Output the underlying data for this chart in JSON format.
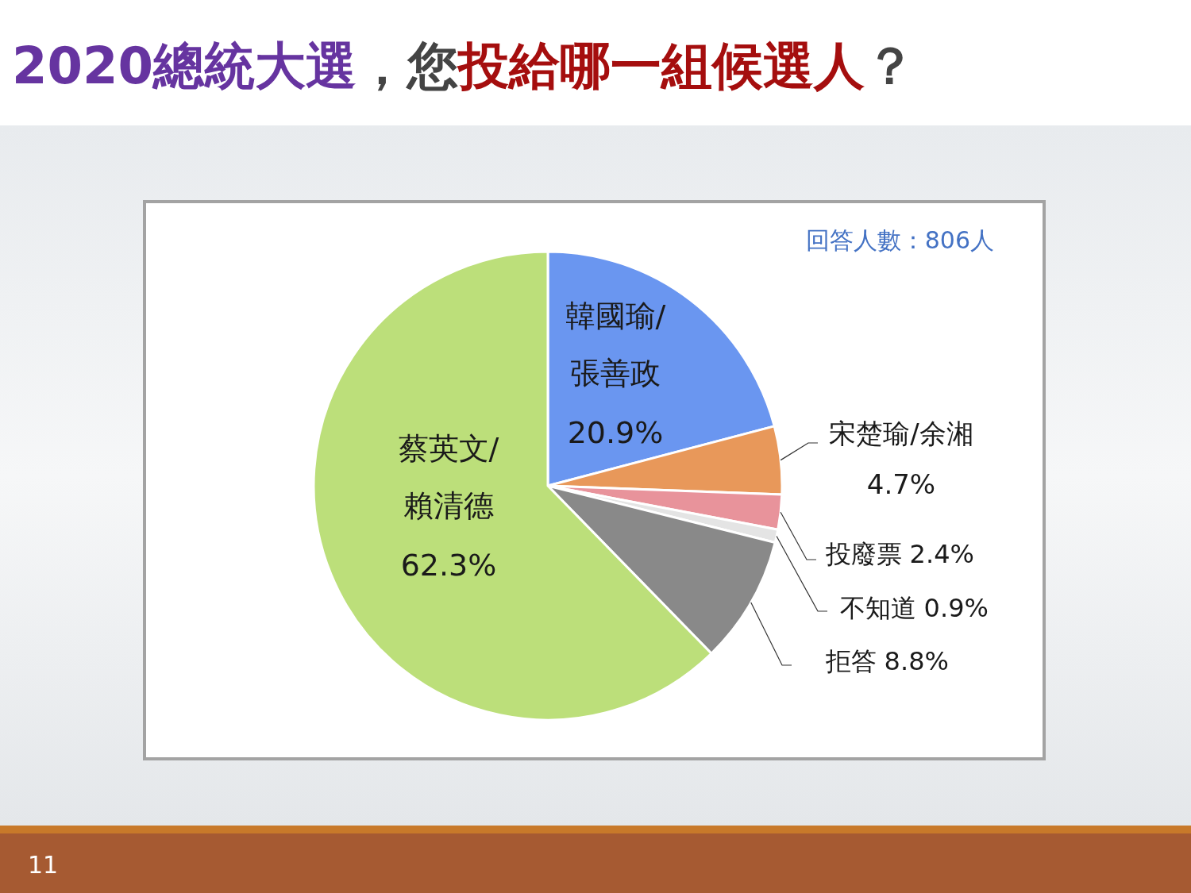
{
  "chart_data": {
    "type": "pie",
    "title": "2020總統大選，您投給哪一組候選人？",
    "categories": [
      "韓國瑜/張善政",
      "宋楚瑜/余湘",
      "投廢票",
      "不知道",
      "拒答",
      "蔡英文/賴清德"
    ],
    "values": [
      20.9,
      4.7,
      2.4,
      0.9,
      8.8,
      62.3
    ],
    "colors": [
      "#6a96f0",
      "#e8985a",
      "#e8939b",
      "#e4e4e4",
      "#898989",
      "#bcdf7a"
    ],
    "value_labels": [
      "20.9%",
      "4.7%",
      "2.4%",
      "0.9%",
      "8.8%",
      "62.3%"
    ],
    "annotations": [
      "回答人數：806人",
      "11"
    ]
  }
}
